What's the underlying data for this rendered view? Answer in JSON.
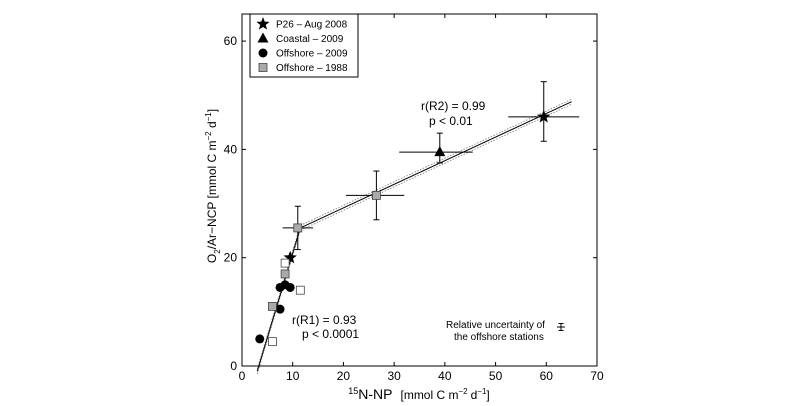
{
  "chart_data": {
    "type": "scatter",
    "xlabel_prefix": "15",
    "xlabel_main": "N-NP",
    "xlabel_units": "[mmol C m",
    "xlabel_units_exp": "−2",
    "xlabel_units_end": "d",
    "xlabel_units_exp2": "−1",
    "xlabel_units_close": "]",
    "ylabel_a": "O",
    "ylabel_sub": "2",
    "ylabel_b": "/Ar−NCP [mmol C m",
    "ylabel_exp": "−2",
    "ylabel_c": " d",
    "ylabel_exp2": "−1",
    "ylabel_close": "]",
    "xlim": [
      0,
      70
    ],
    "ylim": [
      0,
      65
    ],
    "xticks": [
      0,
      10,
      20,
      30,
      40,
      50,
      60,
      70
    ],
    "yticks": [
      0,
      20,
      40,
      60
    ],
    "legend_position": "top-left",
    "series": [
      {
        "name": "P26 – Aug 2008",
        "marker": "star",
        "points": [
          {
            "x": 59.5,
            "y": 46.0,
            "xerr": [
              52.5,
              66.5
            ],
            "yerr": [
              41.5,
              52.5
            ]
          },
          {
            "x": 9.5,
            "y": 20.0
          }
        ]
      },
      {
        "name": "Coastal – 2009",
        "marker": "triangle",
        "points": [
          {
            "x": 39.0,
            "y": 39.5,
            "xerr": [
              31.0,
              45.5
            ],
            "yerr": [
              37.5,
              43.0
            ]
          }
        ]
      },
      {
        "name": "Offshore – 2009",
        "marker": "circle",
        "points": [
          {
            "x": 3.5,
            "y": 5.0
          },
          {
            "x": 7.5,
            "y": 10.5
          },
          {
            "x": 7.5,
            "y": 14.5
          },
          {
            "x": 9.5,
            "y": 14.5
          },
          {
            "x": 8.5,
            "y": 15.0
          }
        ]
      },
      {
        "name": "Offshore – 1988",
        "marker": "square-gray",
        "points": [
          {
            "x": 11.0,
            "y": 25.5,
            "xerr": [
              8.0,
              14.0
            ],
            "yerr": [
              21.5,
              29.5
            ]
          },
          {
            "x": 26.5,
            "y": 31.5,
            "xerr": [
              20.5,
              32.0
            ],
            "yerr": [
              27.0,
              36.0
            ]
          },
          {
            "x": 8.5,
            "y": 17.0
          },
          {
            "x": 6.0,
            "y": 11.0
          }
        ]
      },
      {
        "name": "Offshore – 1988 (open)",
        "marker": "square-open",
        "legend": false,
        "points": [
          {
            "x": 8.5,
            "y": 19.0
          },
          {
            "x": 11.5,
            "y": 14.0
          },
          {
            "x": 6.0,
            "y": 4.5
          }
        ]
      }
    ],
    "fit_lines": [
      {
        "label": "R1",
        "x": [
          3.0,
          11.5
        ],
        "y": [
          -1.0,
          25.5
        ]
      },
      {
        "label": "R2",
        "x": [
          11.5,
          65.0
        ],
        "y": [
          25.5,
          48.8
        ]
      }
    ],
    "annotations": {
      "r2_line1": "r(R2) = 0.99",
      "r2_line2": "p < 0.01",
      "r1_line1": "r(R1) = 0.93",
      "r1_line2": "p < 0.0001",
      "rel_line1": "Relative uncertainty of",
      "rel_line2": "the offshore stations"
    }
  }
}
